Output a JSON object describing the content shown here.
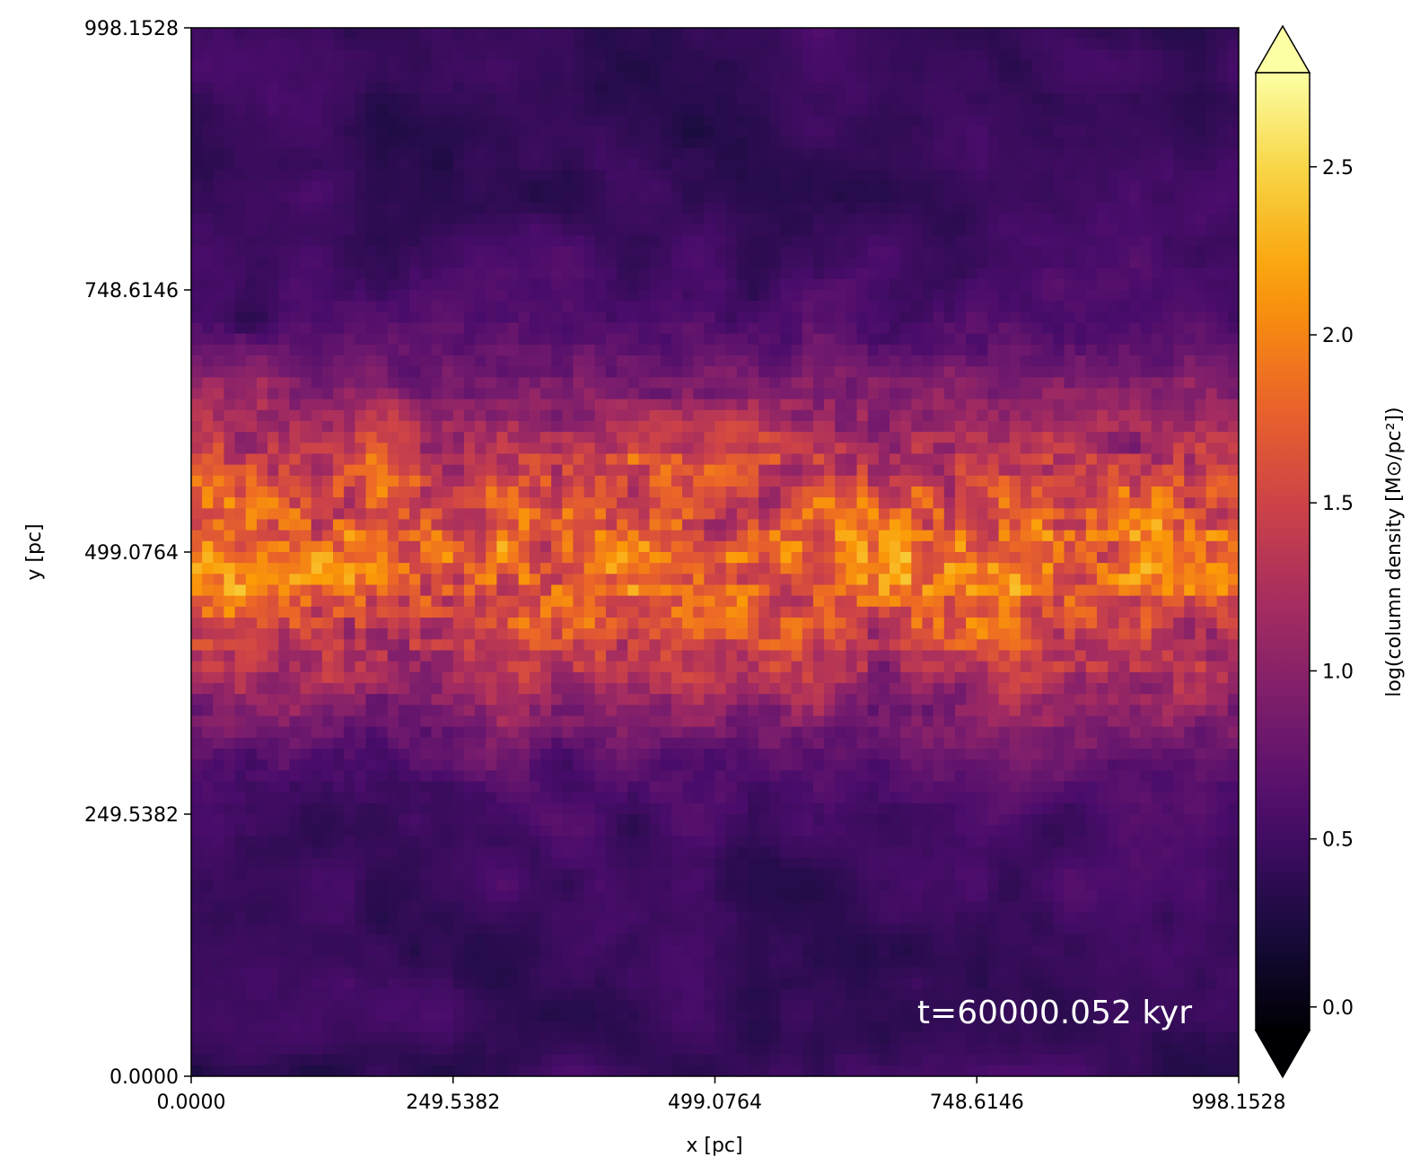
{
  "chart_data": {
    "type": "heatmap",
    "title": "",
    "xlabel": "x [pc]",
    "ylabel": "y [pc]",
    "xlim": [
      0.0,
      998.1528
    ],
    "ylim": [
      0.0,
      998.1528
    ],
    "xticks": [
      0.0,
      249.5382,
      499.0764,
      748.6146,
      998.1528
    ],
    "yticks": [
      0.0,
      249.5382,
      499.0764,
      748.6146,
      998.1528
    ],
    "xtick_labels": [
      "0.0000",
      "249.5382",
      "499.0764",
      "748.6146",
      "998.1528"
    ],
    "ytick_labels": [
      "0.0000",
      "249.5382",
      "499.0764",
      "748.6146",
      "998.1528"
    ],
    "colormap": "inferno",
    "colorbar": {
      "label": "log(column density [M⊙/pc²])",
      "vmin": -0.07,
      "vmax": 2.78,
      "extend": "both",
      "ticks": [
        0.0,
        0.5,
        1.0,
        1.5,
        2.0,
        2.5
      ],
      "tick_labels": [
        "0.0",
        "0.5",
        "1.0",
        "1.5",
        "2.0",
        "2.5"
      ]
    },
    "annotation": "t=60000.052 kyr",
    "description_profile": {
      "dense_band_center_y": 499.0764,
      "dense_band_half_width_y": 160,
      "peak_log_density": 2.6,
      "background_log_density": 0.45
    }
  },
  "colors": {
    "inferno_stops": [
      "#000004",
      "#1b0c41",
      "#4a0c6b",
      "#781c6d",
      "#a52c60",
      "#cf4446",
      "#ed6925",
      "#fb9b06",
      "#f7d13d",
      "#fcffa4"
    ],
    "annotation_color": "#ffffff",
    "axis_color": "#000000"
  }
}
